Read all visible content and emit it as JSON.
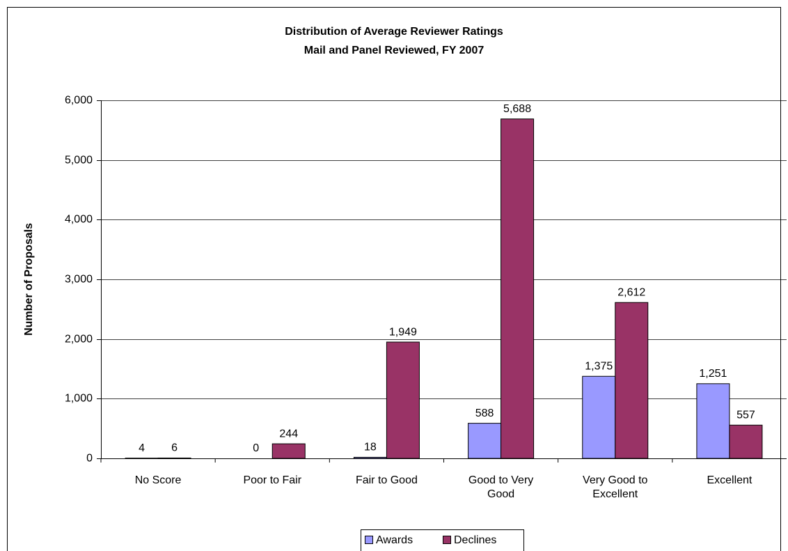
{
  "chart_data": {
    "type": "bar",
    "title": "Distribution of Average Reviewer Ratings",
    "subtitle": "Mail and Panel Reviewed, FY 2007",
    "y_label": "Number of Proposals",
    "categories": [
      "No Score",
      "Poor to Fair",
      "Fair to Good",
      "Good to Very Good",
      "Very Good to Excellent",
      "Excellent"
    ],
    "series": [
      {
        "name": "Awards",
        "color": "#9999ff",
        "values": [
          4,
          0,
          18,
          588,
          1375,
          1251
        ],
        "value_labels": [
          "4",
          "0",
          "18",
          "588",
          "1,375",
          "1,251"
        ]
      },
      {
        "name": "Declines",
        "color": "#993366",
        "values": [
          6,
          244,
          1949,
          5688,
          2612,
          557
        ],
        "value_labels": [
          "6",
          "244",
          "1,949",
          "5,688",
          "2,612",
          "557"
        ]
      }
    ],
    "ylim": [
      0,
      6000
    ],
    "yticks": [
      0,
      {
        "value": 1000,
        "label": "1,000"
      },
      {
        "value": 2000,
        "label": "2,000"
      },
      {
        "value": 3000,
        "label": "3,000"
      },
      {
        "value": 4000,
        "label": "4,000"
      },
      {
        "value": 5000,
        "label": "5,000"
      },
      {
        "value": 6000,
        "label": "6,000"
      }
    ],
    "grid": true,
    "legend": "bottom"
  }
}
